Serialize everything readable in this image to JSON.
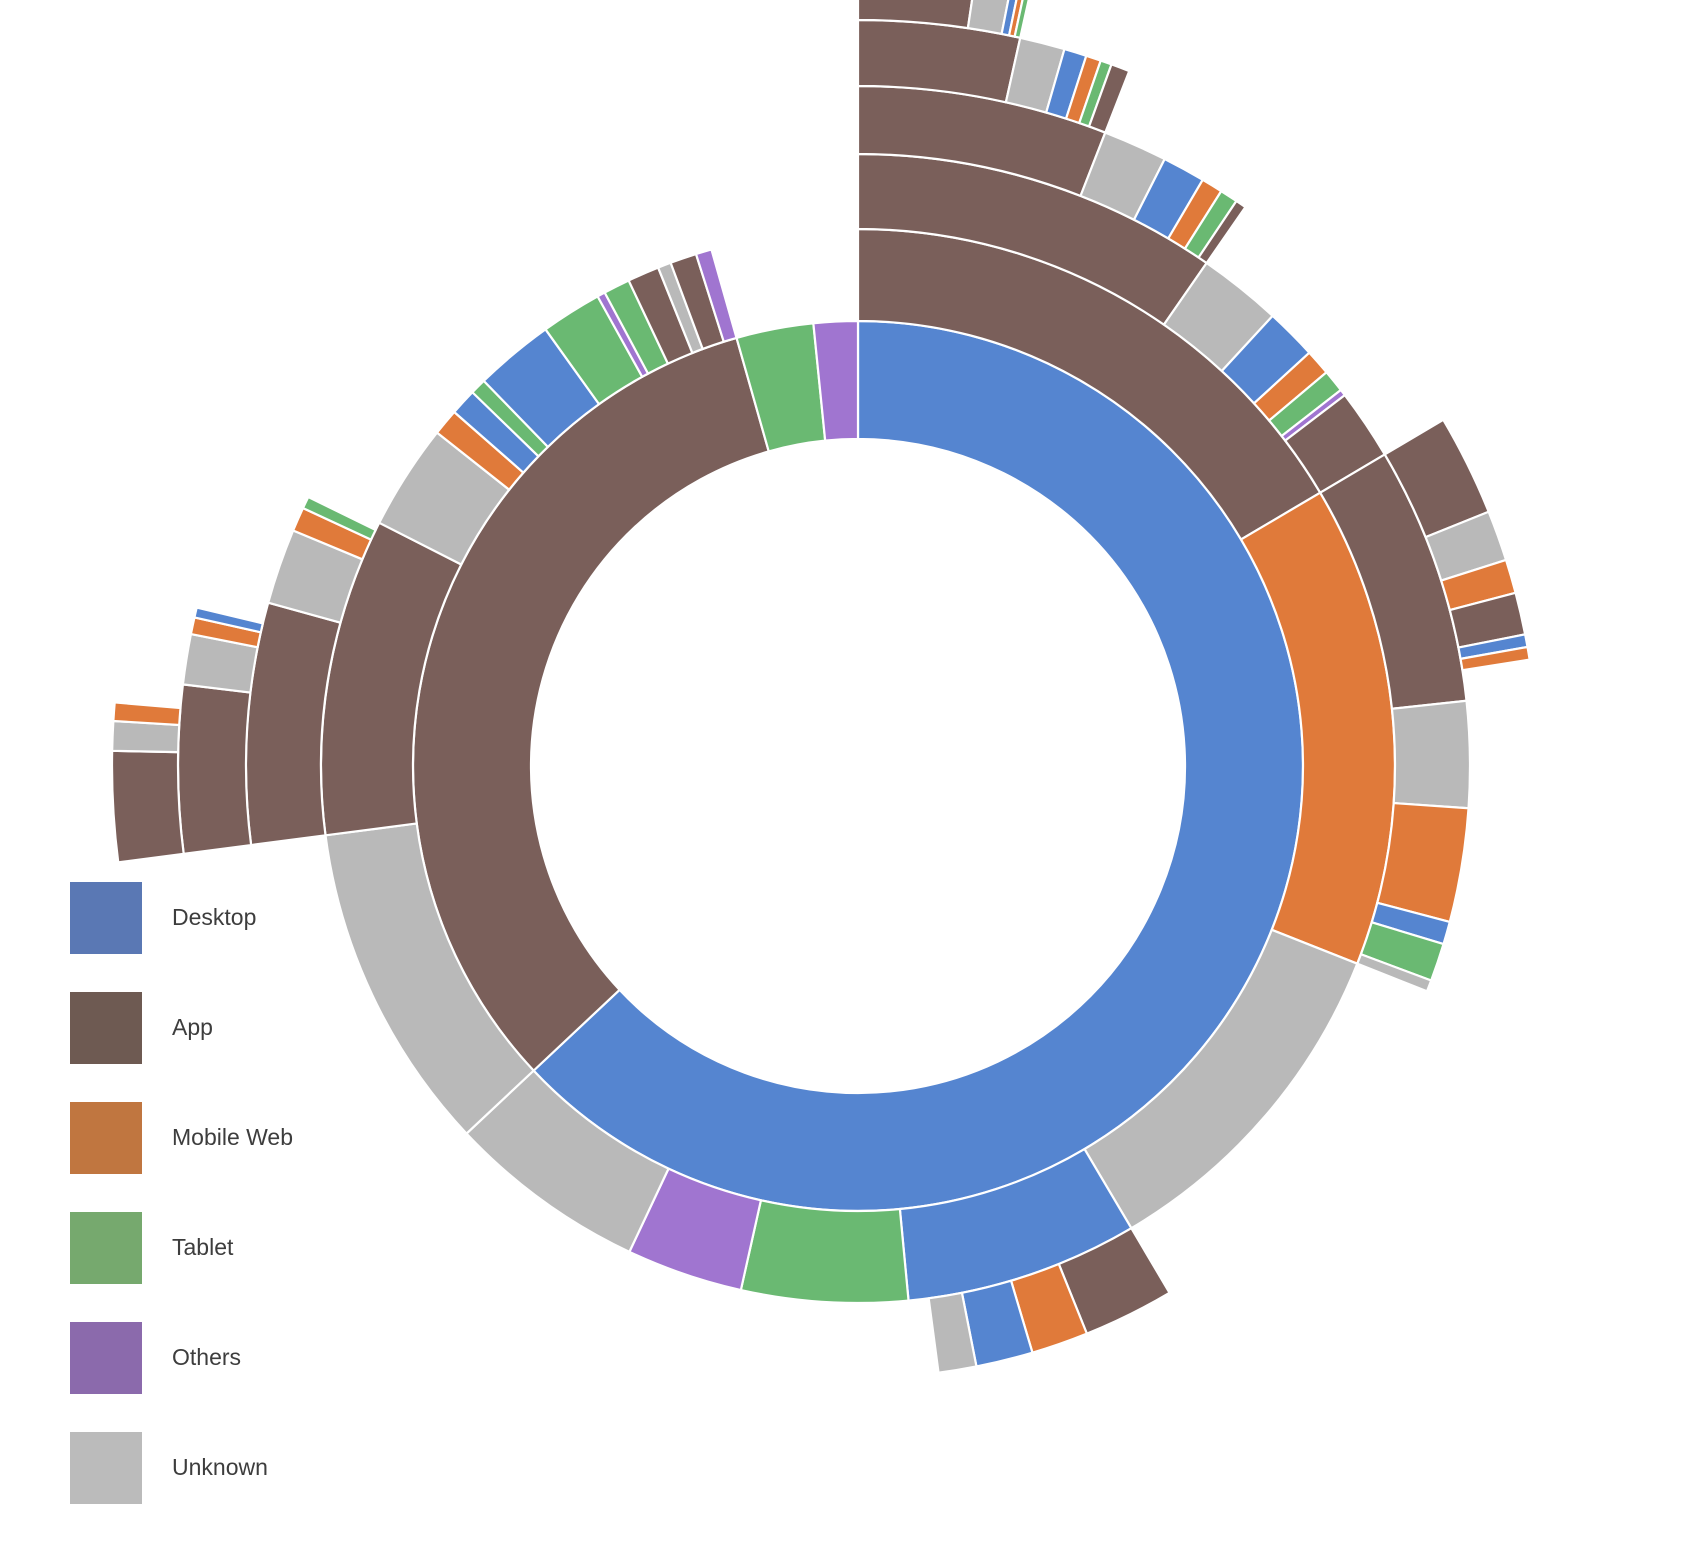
{
  "legend": {
    "items": [
      {
        "label": "Desktop",
        "color": "#5a78b4"
      },
      {
        "label": "App",
        "color": "#6e5a52"
      },
      {
        "label": "Mobile Web",
        "color": "#c07640"
      },
      {
        "label": "Tablet",
        "color": "#76a96e"
      },
      {
        "label": "Others",
        "color": "#8b6aac"
      },
      {
        "label": "Unknown",
        "color": "#bbbbbb"
      }
    ]
  },
  "chart_data": {
    "type": "sunburst",
    "title": "",
    "legend_placement": "bottom-left",
    "category_colors": {
      "Desktop": "#5585d0",
      "App": "#7a5f5a",
      "Mobile Web": "#e07a3a",
      "Tablet": "#6ab972",
      "Others": "#a075d0",
      "Unknown": "#b9b9b9"
    },
    "children": [
      {
        "name": "Desktop",
        "value": 63,
        "children": [
          {
            "name": "App",
            "value": 16.5,
            "children": [
              {
                "name": "App",
                "value": 11.4,
                "children": [
                  {
                    "name": "App",
                    "value": 7.0,
                    "children": [
                      {
                        "name": "App",
                        "value": 4.3,
                        "children": [
                          {
                            "name": "App",
                            "value": 2.9
                          },
                          {
                            "name": "Unknown",
                            "value": 0.9
                          },
                          {
                            "name": "Desktop",
                            "value": 0.2
                          },
                          {
                            "name": "Mobile Web",
                            "value": 0.15
                          },
                          {
                            "name": "Tablet",
                            "value": 0.15
                          }
                        ]
                      },
                      {
                        "name": "Unknown",
                        "value": 1.2
                      },
                      {
                        "name": "Desktop",
                        "value": 0.6
                      },
                      {
                        "name": "Mobile Web",
                        "value": 0.4
                      },
                      {
                        "name": "Tablet",
                        "value": 0.3
                      },
                      {
                        "name": "App",
                        "value": 0.5
                      }
                    ]
                  },
                  {
                    "name": "Unknown",
                    "value": 1.8
                  },
                  {
                    "name": "Desktop",
                    "value": 1.2
                  },
                  {
                    "name": "Mobile Web",
                    "value": 0.6
                  },
                  {
                    "name": "Tablet",
                    "value": 0.5
                  },
                  {
                    "name": "App",
                    "value": 0.3
                  }
                ]
              },
              {
                "name": "Unknown",
                "value": 2.6
              },
              {
                "name": "Desktop",
                "value": 1.6
              },
              {
                "name": "Mobile Web",
                "value": 0.8
              },
              {
                "name": "Tablet",
                "value": 0.7
              },
              {
                "name": "Others",
                "value": 0.2
              },
              {
                "name": "App",
                "value": 2.2
              }
            ]
          },
          {
            "name": "Mobile Web",
            "value": 14.5,
            "children": [
              {
                "name": "App",
                "value": 6.8,
                "children": [
                  {
                    "name": "App",
                    "value": 2.4
                  },
                  {
                    "name": "Unknown",
                    "value": 1.2
                  },
                  {
                    "name": "Mobile Web",
                    "value": 0.8
                  },
                  {
                    "name": "App",
                    "value": 1.0
                  },
                  {
                    "name": "Desktop",
                    "value": 0.3
                  },
                  {
                    "name": "Mobile Web",
                    "value": 0.3
                  }
                ]
              },
              {
                "name": "Unknown",
                "value": 2.8
              },
              {
                "name": "Mobile Web",
                "value": 3.0
              },
              {
                "name": "Desktop",
                "value": 0.6
              },
              {
                "name": "Tablet",
                "value": 1.0
              },
              {
                "name": "Unknown",
                "value": 0.3
              }
            ]
          },
          {
            "name": "Unknown",
            "value": 10.5
          },
          {
            "name": "Desktop",
            "value": 7.0,
            "children": [
              {
                "name": "App",
                "value": 2.4
              },
              {
                "name": "Mobile Web",
                "value": 1.5
              },
              {
                "name": "Desktop",
                "value": 1.5
              },
              {
                "name": "Unknown",
                "value": 1.0
              }
            ]
          },
          {
            "name": "Tablet",
            "value": 5.0
          },
          {
            "name": "Others",
            "value": 3.5
          },
          {
            "name": "Unknown",
            "value": 6.0
          }
        ]
      },
      {
        "name": "App",
        "value": 32.6,
        "children": [
          {
            "name": "Unknown",
            "value": 12.5
          },
          {
            "name": "App",
            "value": 12.0,
            "children": [
              {
                "name": "App",
                "value": 8.0,
                "children": [
                  {
                    "name": "App",
                    "value": 5.0,
                    "children": [
                      {
                        "name": "App",
                        "value": 3.0
                      },
                      {
                        "name": "Unknown",
                        "value": 0.8
                      },
                      {
                        "name": "Mobile Web",
                        "value": 0.5
                      }
                    ]
                  },
                  {
                    "name": "Unknown",
                    "value": 1.5
                  },
                  {
                    "name": "Mobile Web",
                    "value": 0.5
                  },
                  {
                    "name": "Desktop",
                    "value": 0.3
                  }
                ]
              },
              {
                "name": "Unknown",
                "value": 2.5
              },
              {
                "name": "Mobile Web",
                "value": 0.8
              },
              {
                "name": "Tablet",
                "value": 0.4
              }
            ]
          },
          {
            "name": "Unknown",
            "value": 4.0
          },
          {
            "name": "Mobile Web",
            "value": 1.0
          },
          {
            "name": "Desktop",
            "value": 1.0
          },
          {
            "name": "Tablet",
            "value": 0.6
          },
          {
            "name": "Desktop",
            "value": 3.0
          },
          {
            "name": "Tablet",
            "value": 2.3
          },
          {
            "name": "Others",
            "value": 0.3
          },
          {
            "name": "Tablet",
            "value": 1.0
          },
          {
            "name": "App",
            "value": 1.2
          },
          {
            "name": "Unknown",
            "value": 0.5
          },
          {
            "name": "App",
            "value": 1.0
          },
          {
            "name": "Others",
            "value": 0.6
          }
        ]
      },
      {
        "name": "Tablet",
        "value": 2.8
      },
      {
        "name": "Others",
        "value": 1.6
      }
    ]
  }
}
